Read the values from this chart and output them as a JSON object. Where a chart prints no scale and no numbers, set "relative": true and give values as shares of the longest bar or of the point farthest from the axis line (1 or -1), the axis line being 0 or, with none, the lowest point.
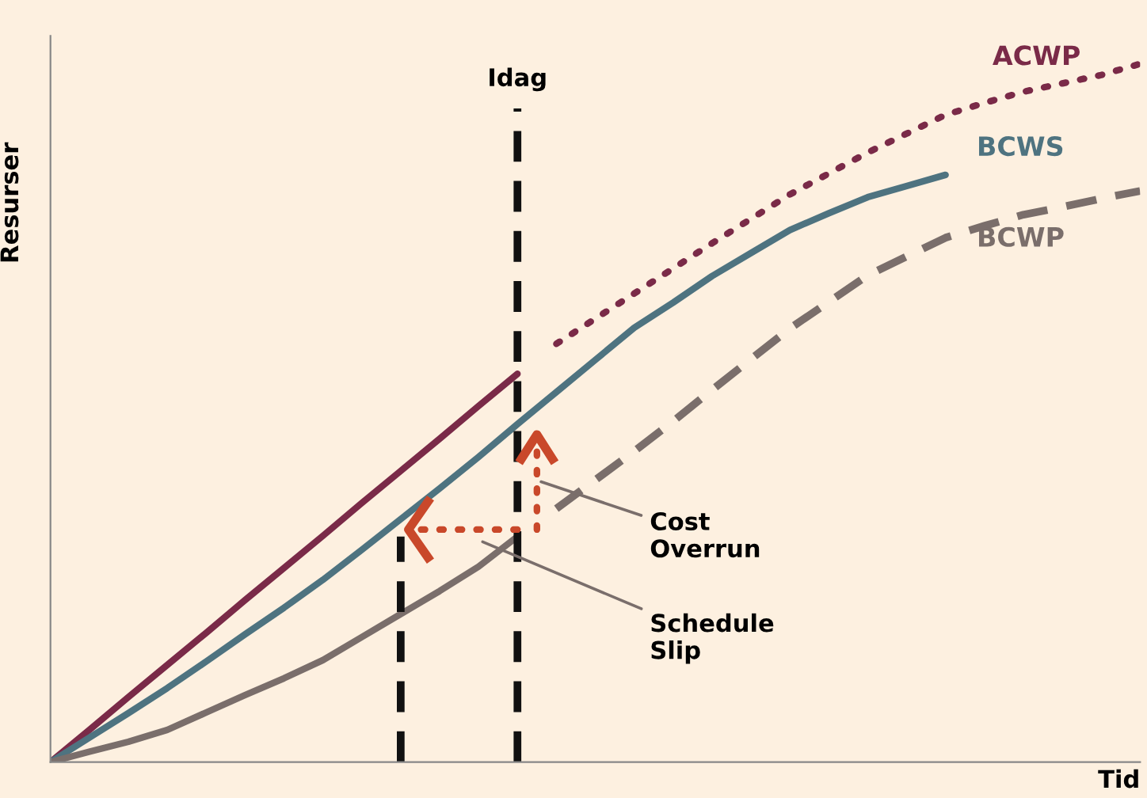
{
  "chart_data": {
    "type": "line",
    "relative": true,
    "xlabel": "Tid",
    "ylabel": "Resurser",
    "categories": [
      null,
      null,
      null,
      null,
      null,
      null,
      null,
      null,
      null,
      null,
      null,
      null,
      null,
      null,
      null,
      null,
      null,
      null,
      null,
      null,
      null,
      null,
      null,
      null,
      null,
      null,
      null,
      null,
      null
    ],
    "series": [
      {
        "color": "#7a2a48",
        "line_style": "solid",
        "values": [
          0,
          0.046,
          0.093,
          0.139,
          0.185,
          0.232,
          0.278,
          0.324,
          0.371,
          0.417,
          0.463,
          0.51,
          0.556,
          null,
          null,
          null,
          null,
          null,
          null,
          null,
          null,
          null,
          null,
          null,
          null,
          null,
          null,
          null,
          null
        ]
      },
      {
        "name": "ACWP",
        "color": "#7a2a48",
        "line_style": "dotted",
        "values": [
          null,
          null,
          null,
          null,
          null,
          null,
          null,
          null,
          null,
          null,
          null,
          null,
          null,
          0.599,
          0.635,
          0.671,
          0.707,
          0.743,
          0.778,
          0.813,
          0.843,
          0.873,
          0.9,
          0.927,
          0.944,
          0.96,
          0.972,
          0.984,
          1.0
        ]
      },
      {
        "name": "BCWS",
        "color": "#4e7380",
        "line_style": "solid",
        "values": [
          0,
          0.035,
          0.07,
          0.106,
          0.144,
          0.183,
          0.221,
          0.261,
          0.304,
          0.348,
          0.392,
          0.437,
          0.484,
          0.53,
          0.576,
          0.622,
          0.658,
          0.696,
          0.729,
          0.762,
          0.786,
          0.809,
          0.825,
          0.841,
          null,
          null,
          null,
          null,
          null
        ]
      },
      {
        "color": "#7a6e6b",
        "line_style": "solid",
        "values": [
          0,
          0.015,
          0.029,
          0.046,
          0.071,
          0.096,
          0.12,
          0.146,
          0.179,
          0.212,
          0.245,
          0.28,
          0.323,
          null,
          null,
          null,
          null,
          null,
          null,
          null,
          null,
          null,
          null,
          null,
          null,
          null,
          null,
          null,
          null
        ]
      },
      {
        "name": "BCWP",
        "color": "#7a6e6b",
        "line_style": "dashed",
        "values": [
          null,
          null,
          null,
          null,
          null,
          null,
          null,
          null,
          null,
          null,
          null,
          null,
          null,
          0.363,
          0.404,
          0.445,
          0.488,
          0.533,
          0.577,
          0.621,
          0.659,
          0.697,
          0.724,
          0.751,
          0.768,
          0.784,
          0.795,
          0.807,
          0.818
        ]
      }
    ],
    "annotations": [
      "Idag",
      "Cost\nOverrun",
      "Schedule\nSlip"
    ]
  }
}
